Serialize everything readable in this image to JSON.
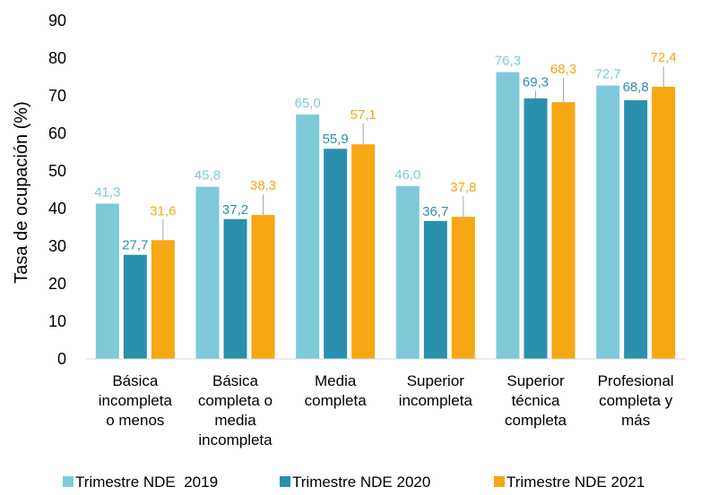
{
  "chart_data": {
    "type": "bar",
    "ylabel": "Tasa de ocupación (%)",
    "ylim": [
      0,
      90
    ],
    "yticks": [
      "0",
      "10",
      "20",
      "30",
      "40",
      "50",
      "60",
      "70",
      "80",
      "90"
    ],
    "grid": false,
    "legend_position": "bottom",
    "categories": [
      [
        "Básica",
        "incompleta",
        "o menos"
      ],
      [
        "Básica",
        "completa o",
        "media",
        "incompleta"
      ],
      [
        "Media",
        "completa"
      ],
      [
        "Superior",
        "incompleta"
      ],
      [
        "Superior",
        "técnica",
        "completa"
      ],
      [
        "Profesional",
        "completa y",
        "más"
      ]
    ],
    "series": [
      {
        "name": "Trimestre NDE  2019",
        "color": "#7ECAD9",
        "values": [
          41.3,
          45.8,
          65.0,
          46.0,
          76.3,
          72.7
        ],
        "labels": [
          "41,3",
          "45,8",
          "65,0",
          "46,0",
          "76,3",
          "72,7"
        ]
      },
      {
        "name": "Trimestre NDE 2020",
        "color": "#2B8FAE",
        "values": [
          27.7,
          37.2,
          55.9,
          36.7,
          69.3,
          68.8
        ],
        "labels": [
          "27,7",
          "37,2",
          "55,9",
          "36,7",
          "69,3",
          "68,8"
        ]
      },
      {
        "name": "Trimestre NDE 2021",
        "color": "#F5A714",
        "values": [
          31.6,
          38.3,
          57.1,
          37.8,
          68.3,
          72.4
        ],
        "labels": [
          "31,6",
          "38,3",
          "57,1",
          "37,8",
          "68,3",
          "72,4"
        ]
      }
    ]
  }
}
